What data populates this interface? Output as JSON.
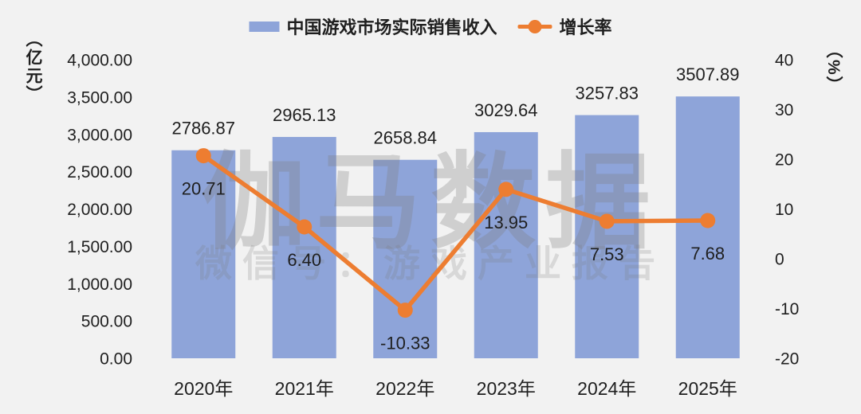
{
  "chart_data": {
    "type": "combo",
    "categories": [
      "2020年",
      "2021年",
      "2022年",
      "2023年",
      "2024年",
      "2025年"
    ],
    "series": [
      {
        "name": "中国游戏市场实际销售收入",
        "chart": "bar",
        "axis": "left",
        "color": "#8EA4D9",
        "values": [
          2786.87,
          2965.13,
          2658.84,
          3029.64,
          3257.83,
          3507.89
        ]
      },
      {
        "name": "增长率",
        "chart": "line",
        "axis": "right",
        "color": "#ED7D31",
        "values": [
          20.71,
          6.4,
          -10.33,
          13.95,
          7.53,
          7.68
        ]
      }
    ],
    "left_axis": {
      "unit": "（亿元）",
      "min": 0,
      "max": 4000,
      "step": 500,
      "tick_labels": [
        "4,000.00",
        "3,500.00",
        "3,000.00",
        "2,500.00",
        "2,000.00",
        "1,500.00",
        "1,000.00",
        "500.00",
        "0.00"
      ]
    },
    "right_axis": {
      "unit": "（%）",
      "min": -20,
      "max": 40,
      "step": 10,
      "tick_labels": [
        "40",
        "30",
        "20",
        "10",
        "0",
        "-10",
        "-20"
      ]
    },
    "grid": false,
    "legend_position": "top",
    "value_label_decimals": 2
  },
  "watermark": {
    "line1": "伽马数据",
    "line2": "微信号：游戏产业报告"
  },
  "colors": {
    "background": "#F2F2F2",
    "bar": "#8EA4D9",
    "line": "#ED7D31",
    "text": "#1F1F1F",
    "watermark": "#7D7D7D"
  }
}
